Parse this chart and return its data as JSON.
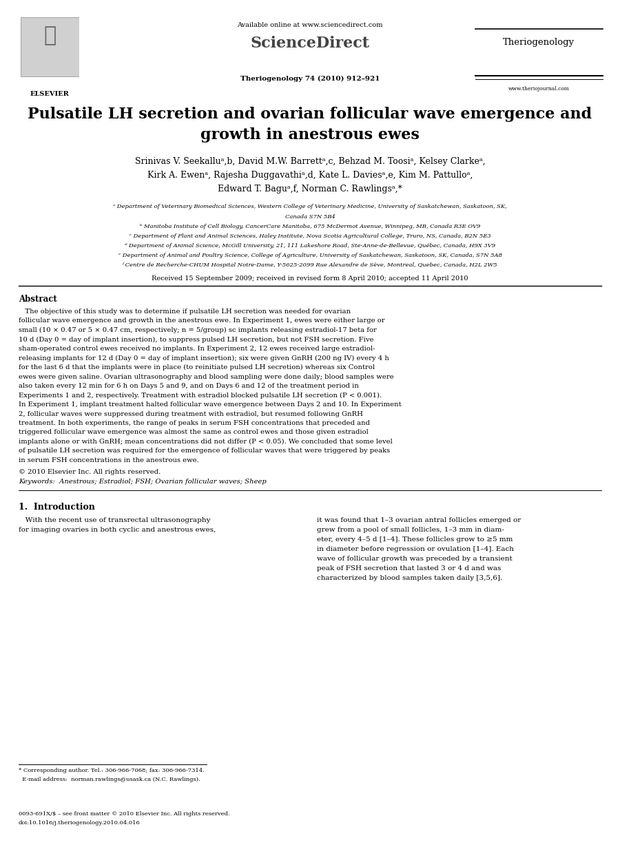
{
  "background_color": "#ffffff",
  "dpi": 100,
  "fig_w": 9.0,
  "fig_h": 12.3,
  "header": {
    "available_online": "Available online at www.sciencedirect.com",
    "sciencedirect": "ScienceDirect",
    "journal_name_right": "Theriogenology",
    "journal_info": "Theriogenology 74 (2010) 912–921",
    "website": "www.theriojournal.com"
  },
  "title_line1": "Pulsatile LH secretion and ovarian follicular wave emergence and",
  "title_line2": "growth in anestrous ewes",
  "author_line1": "Srinivas V. Seekalluᵃ,b, David M.W. Barrettᵃ,c, Behzad M. Toosiᵃ, Kelsey Clarkeᵃ,",
  "author_line2": "Kirk A. Ewenᵃ, Rajesha Duggavathiᵃ,d, Kate L. Daviesᵃ,e, Kim M. Pattulloᵃ,",
  "author_line3": "Edward T. Baguᵃ,f, Norman C. Rawlingsᵃ,*",
  "aff_a": "ᵃ Department of Veterinary Biomedical Sciences, Western College of Veterinary Medicine, University of Saskatchewan, Saskatoon, SK,",
  "aff_a2": "Canada S7N 5B4",
  "aff_b": "ᵇ Manitoba Institute of Cell Biology, CancerCare Manitoba, 675 McDermot Avenue, Winnipeg, MB, Canada R3E OV9",
  "aff_c": "ᶜ Department of Plant and Animal Sciences, Haley Institute, Nova Scotia Agricultural College, Truro, NS, Canada, B2N 5E3",
  "aff_d": "ᵈ Department of Animal Science, McGill University, 21, 111 Lakeshore Road, Ste-Anne-de-Bellevue, Québec, Canada, H9X 3V9",
  "aff_e": "ᵉ Department of Animal and Poultry Science, College of Agriculture, University of Saskatchewan, Saskatoon, SK, Canada, S7N 5A8",
  "aff_f": "ᶠ Centre de Recherche-CHUM Hospital Notre-Dame, Y-5625-2099 Rue Alexandre de Sève, Montreal, Quebec, Canada, H2L 2W5",
  "received": "Received 15 September 2009; received in revised form 8 April 2010; accepted 11 April 2010",
  "abstract_title": "Abstract",
  "abstract_body": "The objective of this study was to determine if pulsatile LH secretion was needed for ovarian follicular wave emergence and growth in the anestrous ewe. In Experiment 1, ewes were either large or small (10 × 0.47 or 5 × 0.47 cm, respectively; n = 5/group) sc implants releasing estradiol-17 beta for 10 d (Day 0 = day of implant insertion), to suppress pulsed LH secretion, but not FSH secretion. Five sham-operated control ewes received no implants. In Experiment 2, 12 ewes received large estradiol-releasing implants for 12 d (Day 0 = day of implant insertion); six were given GnRH (200 ng IV) every 4 h for the last 6 d that the implants were in place (to reinitiate pulsed LH secretion) whereas six Control ewes were given saline. Ovarian ultrasonography and blood sampling were done daily; blood samples were also taken every 12 min for 6 h on Days 5 and 9, and on Days 6 and 12 of the treatment period in Experiments 1 and 2, respectively. Treatment with estradiol blocked pulsatile LH secretion (P < 0.001). In Experiment 1, implant treatment halted follicular wave emergence between Days 2 and 10. In Experiment 2, follicular waves were suppressed during treatment with estradiol, but resumed following GnRH treatment. In both experiments, the range of peaks in serum FSH concentrations that preceded and triggered follicular wave emergence was almost the same as control ewes and those given estradiol implants alone or with GnRH; mean concentrations did not differ (P < 0.05). We concluded that some level of pulsatile LH secretion was required for the emergence of follicular waves that were triggered by peaks in serum FSH concentrations in the anestrous ewe.",
  "copyright": "© 2010 Elsevier Inc. All rights reserved.",
  "keywords": "Keywords:  Anestrous; Estradiol; FSH; Ovarian follicular waves; Sheep",
  "intro_title": "1.  Introduction",
  "intro_col1_line1": "   With the recent use of transrectal ultrasonography",
  "intro_col1_line2": "for imaging ovaries in both cyclic and anestrous ewes,",
  "intro_col2": "it was found that 1–3 ovarian antral follicles emerged or\ngrew from a pool of small follicles, 1–3 mm in diam-\neter, every 4–5 d [1–4]. These follicles grow to ≥5 mm\nin diameter before regression or ovulation [1–4]. Each\nwave of follicular growth was preceded by a transient\npeak of FSH secretion that lasted 3 or 4 d and was\ncharacterized by blood samples taken daily [3,5,6].",
  "fn_line": "* Corresponding author. Tel.: 306-966-7068; fax: 306-966-7314.",
  "fn_email": "  E-mail address:  norman.rawlings@usask.ca (N.C. Rawlings).",
  "footer1": "0093-691X/$ – see front matter © 2010 Elsevier Inc. All rights reserved.",
  "footer2": "doi:10.1016/j.theriogenology.2010.04.016"
}
